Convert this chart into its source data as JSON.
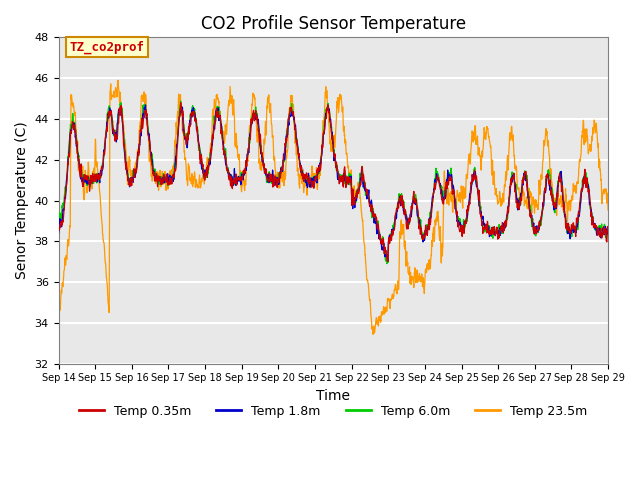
{
  "title": "CO2 Profile Sensor Temperature",
  "ylabel": "Senor Temperature (C)",
  "xlabel": "Time",
  "annotation_text": "TZ_co2prof",
  "annotation_color": "#cc0000",
  "annotation_bg": "#ffffcc",
  "annotation_border": "#cc8800",
  "ylim": [
    32,
    48
  ],
  "yticks": [
    32,
    34,
    36,
    38,
    40,
    42,
    44,
    46,
    48
  ],
  "n_days": 15,
  "start_day": 14,
  "colors": {
    "Temp 0.35m": "#cc0000",
    "Temp 1.8m": "#0000cc",
    "Temp 6.0m": "#00cc00",
    "Temp 23.5m": "#ff9900"
  },
  "bg_color": "#e8e8e8",
  "grid_color": "#ffffff",
  "title_fontsize": 12,
  "axis_fontsize": 10,
  "tick_fontsize": 8
}
